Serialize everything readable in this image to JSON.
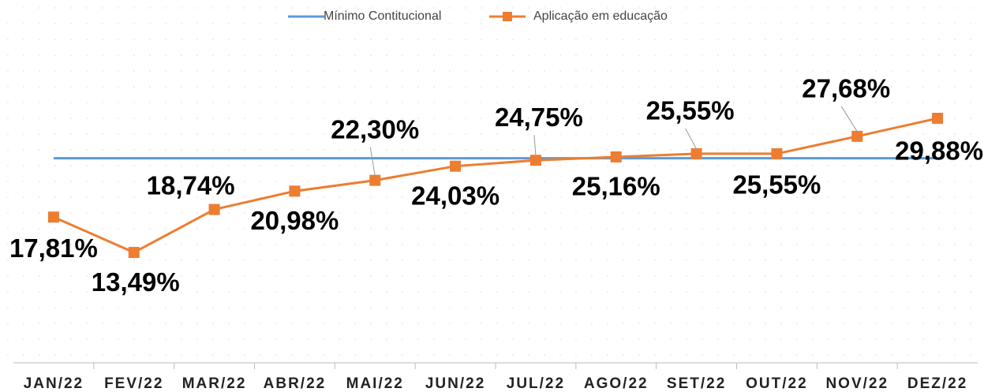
{
  "chart_data": {
    "type": "line",
    "categories": [
      "JAN/22",
      "FEV/22",
      "MAR/22",
      "ABR/22",
      "MAI/22",
      "JUN/22",
      "JUL/22",
      "AGO/22",
      "SET/22",
      "OUT/22",
      "NOV/22",
      "DEZ/22"
    ],
    "series": [
      {
        "name": "Mínimo Contitucional",
        "color": "#5b9bd5",
        "values": [
          25,
          25,
          25,
          25,
          25,
          25,
          25,
          25,
          25,
          25,
          25,
          25
        ]
      },
      {
        "name": "Aplicação em educação",
        "color": "#ed7d31",
        "marker": "square",
        "values": [
          17.81,
          13.49,
          18.74,
          20.98,
          22.3,
          24.03,
          24.75,
          25.16,
          25.55,
          25.55,
          27.68,
          29.88
        ],
        "value_labels": [
          "17,81%",
          "13,49%",
          "18,74%",
          "20,98%",
          "22,30%",
          "24,03%",
          "24,75%",
          "25,16%",
          "25,55%",
          "25,55%",
          "27,68%",
          "29,88%"
        ]
      }
    ],
    "ylim": [
      0,
      40
    ],
    "legend": "top"
  }
}
